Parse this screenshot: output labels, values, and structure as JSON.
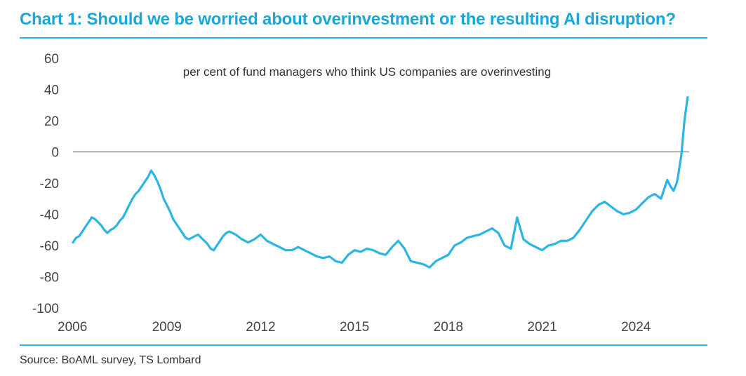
{
  "header": {
    "title": "Chart 1: Should we be worried about overinvestment or the resulting AI disruption?"
  },
  "footer": {
    "source": "Source: BoAML survey, TS Lombard"
  },
  "colors": {
    "title": "#1aa6d6",
    "rule": "#29b6e4",
    "series": "#2bb5e4",
    "zero_line": "#7a7a7a"
  },
  "chart_data": {
    "type": "line",
    "title": "Should we be worried about overinvestment or the resulting AI disruption?",
    "annotation": "per cent of fund managers who think US companies are overinvesting",
    "xlabel": "",
    "ylabel": "",
    "xlim": [
      2006,
      2025.7
    ],
    "ylim": [
      -100,
      60
    ],
    "yticks": [
      60,
      40,
      20,
      0,
      -20,
      -40,
      -60,
      -80,
      -100
    ],
    "xticks": [
      2006,
      2009,
      2012,
      2015,
      2018,
      2021,
      2024
    ],
    "grid": false,
    "legend": "none",
    "series": [
      {
        "name": "per cent of fund managers who think US companies are overinvesting",
        "x": [
          2006.0,
          2006.1,
          2006.2,
          2006.3,
          2006.4,
          2006.5,
          2006.6,
          2006.7,
          2006.8,
          2006.9,
          2007.0,
          2007.1,
          2007.2,
          2007.3,
          2007.4,
          2007.5,
          2007.6,
          2007.7,
          2007.8,
          2007.9,
          2008.0,
          2008.1,
          2008.2,
          2008.3,
          2008.4,
          2008.5,
          2008.6,
          2008.7,
          2008.8,
          2008.9,
          2009.0,
          2009.1,
          2009.2,
          2009.3,
          2009.4,
          2009.5,
          2009.6,
          2009.7,
          2009.8,
          2009.9,
          2010.0,
          2010.1,
          2010.2,
          2010.3,
          2010.4,
          2010.5,
          2010.6,
          2010.7,
          2010.8,
          2010.9,
          2011.0,
          2011.2,
          2011.4,
          2011.6,
          2011.8,
          2012.0,
          2012.2,
          2012.4,
          2012.6,
          2012.8,
          2013.0,
          2013.2,
          2013.4,
          2013.6,
          2013.8,
          2014.0,
          2014.2,
          2014.4,
          2014.6,
          2014.8,
          2015.0,
          2015.2,
          2015.4,
          2015.6,
          2015.8,
          2016.0,
          2016.2,
          2016.4,
          2016.6,
          2016.8,
          2017.0,
          2017.2,
          2017.4,
          2017.6,
          2017.8,
          2018.0,
          2018.2,
          2018.4,
          2018.6,
          2018.8,
          2019.0,
          2019.2,
          2019.4,
          2019.6,
          2019.8,
          2020.0,
          2020.2,
          2020.4,
          2020.6,
          2020.8,
          2021.0,
          2021.2,
          2021.4,
          2021.6,
          2021.8,
          2022.0,
          2022.2,
          2022.4,
          2022.6,
          2022.8,
          2023.0,
          2023.2,
          2023.4,
          2023.6,
          2023.8,
          2024.0,
          2024.2,
          2024.4,
          2024.6,
          2024.8,
          2025.0,
          2025.1,
          2025.2,
          2025.3,
          2025.35,
          2025.45,
          2025.55,
          2025.65
        ],
        "values": [
          -58,
          -55,
          -54,
          -51,
          -48,
          -45,
          -42,
          -43,
          -45,
          -47,
          -50,
          -52,
          -50,
          -49,
          -47,
          -44,
          -42,
          -38,
          -34,
          -30,
          -27,
          -25,
          -22,
          -19,
          -16,
          -12,
          -15,
          -19,
          -24,
          -30,
          -34,
          -38,
          -43,
          -46,
          -49,
          -52,
          -55,
          -56,
          -55,
          -54,
          -53,
          -55,
          -57,
          -59,
          -62,
          -63,
          -60,
          -57,
          -54,
          -52,
          -51,
          -53,
          -56,
          -58,
          -56,
          -53,
          -57,
          -59,
          -61,
          -63,
          -63,
          -61,
          -63,
          -65,
          -67,
          -68,
          -67,
          -70,
          -71,
          -66,
          -63,
          -64,
          -62,
          -63,
          -65,
          -66,
          -61,
          -57,
          -62,
          -70,
          -71,
          -72,
          -74,
          -70,
          -68,
          -66,
          -60,
          -58,
          -55,
          -54,
          -53,
          -51,
          -49,
          -52,
          -60,
          -62,
          -42,
          -56,
          -59,
          -61,
          -63,
          -60,
          -59,
          -57,
          -57,
          -55,
          -50,
          -44,
          -38,
          -34,
          -32,
          -35,
          -38,
          -40,
          -39,
          -37,
          -33,
          -29,
          -27,
          -30,
          -18,
          -22,
          -25,
          -20,
          -15,
          -2,
          20,
          35
        ]
      }
    ]
  }
}
